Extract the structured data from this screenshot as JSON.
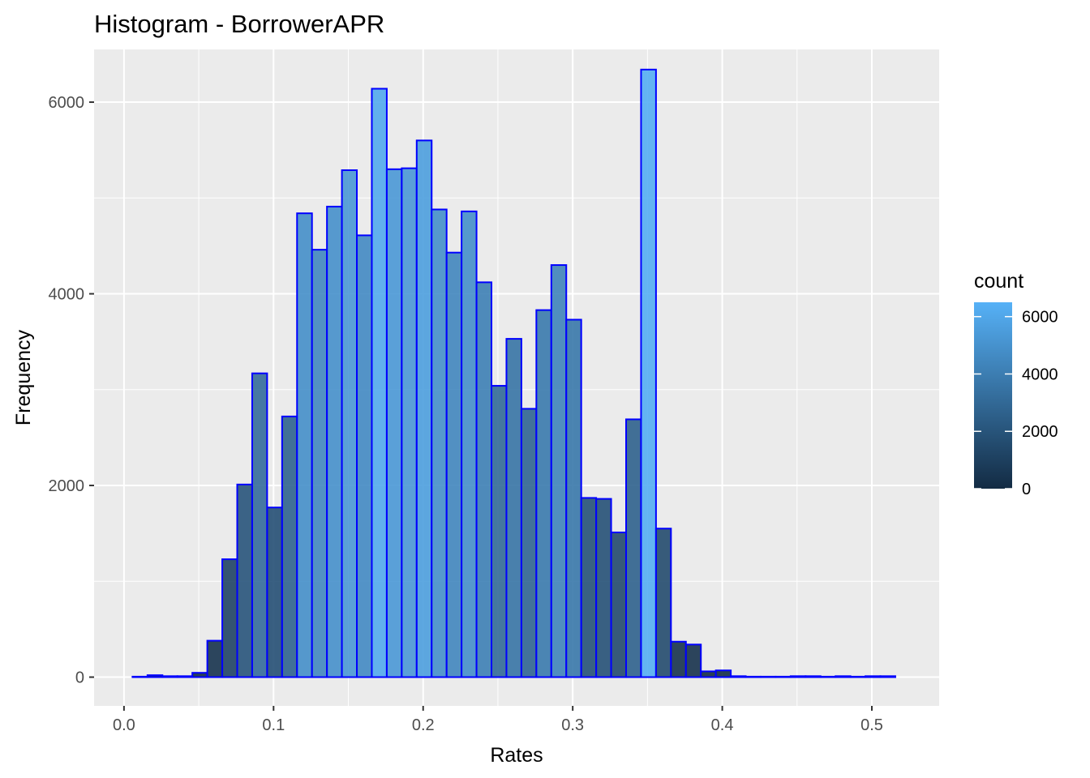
{
  "chart_data": {
    "type": "bar",
    "title": "Histogram - BorrowerAPR",
    "xlabel": "Rates",
    "ylabel": "Frequency",
    "xlim": [
      -0.02,
      0.545
    ],
    "ylim": [
      -300,
      6550
    ],
    "x_ticks": [
      0.0,
      0.1,
      0.2,
      0.3,
      0.4,
      0.5
    ],
    "x_tick_labels": [
      "0.0",
      "0.1",
      "0.2",
      "0.3",
      "0.4",
      "0.5"
    ],
    "y_ticks": [
      0,
      2000,
      4000,
      6000
    ],
    "y_tick_labels": [
      "0",
      "2000",
      "4000",
      "6000"
    ],
    "grid": true,
    "bin_width": 0.01,
    "bin_centers": [
      0.0107,
      0.0207,
      0.0307,
      0.0407,
      0.0507,
      0.0607,
      0.0707,
      0.0807,
      0.0907,
      0.1007,
      0.1107,
      0.1207,
      0.1307,
      0.1407,
      0.1507,
      0.1607,
      0.1707,
      0.1807,
      0.1907,
      0.2007,
      0.2107,
      0.2207,
      0.2307,
      0.2407,
      0.2507,
      0.2607,
      0.2707,
      0.2807,
      0.2907,
      0.3007,
      0.3107,
      0.3207,
      0.3307,
      0.3407,
      0.3507,
      0.3607,
      0.3707,
      0.3807,
      0.3907,
      0.4007,
      0.4107,
      0.4207,
      0.4307,
      0.4407,
      0.4507,
      0.4607,
      0.4707,
      0.4807,
      0.4907,
      0.5007,
      0.5107
    ],
    "values": [
      5,
      20,
      10,
      10,
      45,
      380,
      1230,
      2010,
      3170,
      1770,
      2720,
      4840,
      4460,
      4910,
      5290,
      4610,
      6140,
      5300,
      5310,
      5600,
      4880,
      4430,
      4860,
      4120,
      3040,
      3530,
      2800,
      3830,
      4300,
      3730,
      1870,
      1860,
      1510,
      2690,
      6340,
      1550,
      370,
      340,
      60,
      70,
      10,
      5,
      5,
      5,
      10,
      10,
      5,
      10,
      5,
      10,
      10
    ],
    "fill_scale": {
      "low_color": "#132B43",
      "high_color": "#56B1F7",
      "outline_color": "#0000FF",
      "bar_opacity": 0.9
    },
    "legend": {
      "title": "count",
      "position": "right",
      "ticks": [
        0,
        2000,
        4000,
        6000
      ],
      "tick_labels": [
        "0",
        "2000",
        "4000",
        "6000"
      ],
      "range": [
        0,
        6500
      ]
    },
    "colors": {
      "panel_background": "#EBEBEB",
      "gridline": "#FFFFFF",
      "axis_tick": "#333333"
    }
  }
}
